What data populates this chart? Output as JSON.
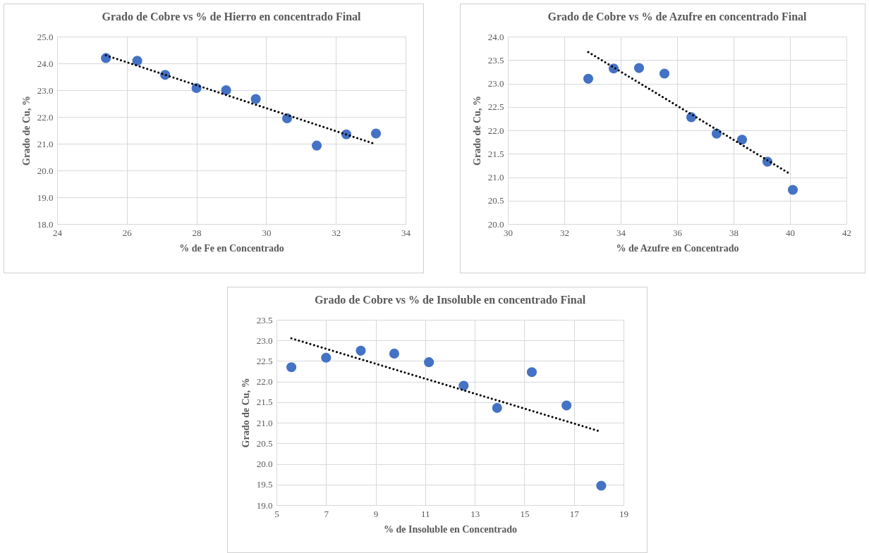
{
  "chart_data": [
    {
      "type": "scatter",
      "title": "Grado de Cobre vs % de Hierro en concentrado Final",
      "xlabel": "% de Fe en Concentrado",
      "ylabel": "Grado de Cu, %",
      "grid": true,
      "xlim": [
        24,
        34
      ],
      "xticks": [
        24,
        26,
        28,
        30,
        32,
        34
      ],
      "ylim": [
        18,
        25
      ],
      "yticks": [
        {
          "value": 18,
          "label": "18.0"
        },
        {
          "value": 19,
          "label": "19.0"
        },
        {
          "value": 20,
          "label": "20.0"
        },
        {
          "value": 21,
          "label": "21.0"
        },
        {
          "value": 22,
          "label": "22.0"
        },
        {
          "value": 23,
          "label": "23.0"
        },
        {
          "value": 24,
          "label": "24.0"
        },
        {
          "value": 25,
          "label": "25.0"
        }
      ],
      "x": [
        25.4,
        26.3,
        27.1,
        28.0,
        28.85,
        29.7,
        30.6,
        31.45,
        32.3,
        33.15
      ],
      "series": [
        {
          "type": "scatter",
          "color": "#4472c4",
          "marker": "circle",
          "values": [
            24.2,
            24.1,
            23.57,
            23.08,
            23.0,
            22.67,
            21.95,
            20.93,
            21.35,
            21.38
          ]
        },
        {
          "type": "line",
          "color": "#000000",
          "marker": "none",
          "line_style": "dotted",
          "x": [
            25.4,
            33.1
          ],
          "values": [
            24.3,
            21.0
          ]
        }
      ]
    },
    {
      "type": "scatter",
      "title": "Grado de Cobre vs % de Azufre en concentrado Final",
      "xlabel": "% de Azufre en Concentrado",
      "ylabel": "Grado de Cu, %",
      "grid": true,
      "xlim": [
        30,
        42
      ],
      "xticks": [
        30,
        32,
        34,
        36,
        38,
        40,
        42
      ],
      "ylim": [
        20,
        24
      ],
      "yticks": [
        {
          "value": 20,
          "label": "20.0"
        },
        20.5,
        {
          "value": 21,
          "label": "21.0"
        },
        21.5,
        {
          "value": 22,
          "label": "22.0"
        },
        22.5,
        {
          "value": 23,
          "label": "23.0"
        },
        23.5,
        {
          "value": 24,
          "label": "24.0"
        }
      ],
      "x": [
        32.85,
        33.75,
        34.65,
        35.55,
        36.5,
        37.4,
        38.3,
        39.2,
        40.1
      ],
      "series": [
        {
          "type": "scatter",
          "color": "#4472c4",
          "marker": "circle",
          "values": [
            23.1,
            23.32,
            23.33,
            23.21,
            22.28,
            21.93,
            21.8,
            21.33,
            20.73
          ]
        },
        {
          "type": "line",
          "color": "#000000",
          "marker": "none",
          "line_style": "dotted",
          "x": [
            32.85,
            40.0
          ],
          "values": [
            23.67,
            21.07
          ]
        }
      ]
    },
    {
      "type": "scatter",
      "title": "Grado de Cobre vs % de Insoluble en concentrado Final",
      "xlabel": "% de Insoluble en Concentrado",
      "ylabel": "Grado de Cu, %",
      "grid": true,
      "xlim": [
        5,
        19
      ],
      "xticks": [
        5,
        7,
        9,
        11,
        13,
        15,
        17,
        19
      ],
      "ylim": [
        19,
        23.5
      ],
      "yticks": [
        {
          "value": 19,
          "label": "19.0"
        },
        19.5,
        {
          "value": 20,
          "label": "20.0"
        },
        20.5,
        {
          "value": 21,
          "label": "21.0"
        },
        21.5,
        {
          "value": 22,
          "label": "22.0"
        },
        22.5,
        {
          "value": 23,
          "label": "23.0"
        },
        23.5
      ],
      "x": [
        5.6,
        7.0,
        8.4,
        9.75,
        11.15,
        12.55,
        13.9,
        15.3,
        16.7,
        18.1
      ],
      "series": [
        {
          "type": "scatter",
          "color": "#4472c4",
          "marker": "circle",
          "values": [
            22.35,
            22.58,
            22.75,
            22.68,
            22.47,
            21.9,
            21.36,
            22.23,
            21.42,
            19.47
          ]
        },
        {
          "type": "line",
          "color": "#000000",
          "marker": "none",
          "line_style": "dotted",
          "x": [
            5.6,
            18.0
          ],
          "values": [
            23.05,
            20.8
          ]
        }
      ]
    }
  ]
}
